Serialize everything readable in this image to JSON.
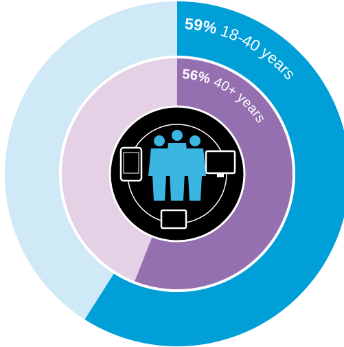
{
  "chart_data": [
    {
      "type": "donut",
      "categories": [
        "18-40 years"
      ],
      "values": [
        59
      ],
      "value_labels": [
        "59%"
      ],
      "color": "#009fd8",
      "track_color": "#cfe9f6"
    },
    {
      "type": "pie",
      "categories": [
        "40+ years"
      ],
      "values": [
        56
      ],
      "value_labels": [
        "56%"
      ],
      "color": "#9570b1",
      "track_color": "#e5d1e6"
    }
  ]
}
